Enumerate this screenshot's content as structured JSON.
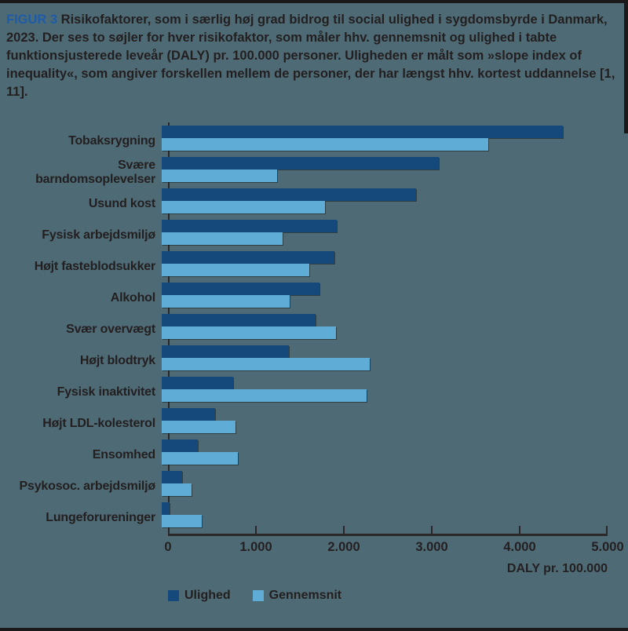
{
  "figure": {
    "label": "FIGUR 3",
    "caption": " Risikofaktorer, som i særlig høj grad bidrog til social ulighed i sygdomsbyrde i Danmark, 2023. Der ses to søjler for hver risikofaktor, som måler hhv. gennemsnit og ulighed i tabte funktionsjusterede leveår (DALY) pr. 100.000 personer. Uligheden er målt som »slope index of inequality«, som angiver forskellen mellem de personer, der har længst hhv. kortest uddannelse [1, 11]."
  },
  "colors": {
    "background": "#4E6A74",
    "ulighed": "#15497B",
    "gennemsnit": "#5FACD6",
    "figure_label": "#1E5CA9",
    "text": "#231F20",
    "axis": "#2B282A"
  },
  "chart_data": {
    "type": "bar",
    "orientation": "horizontal",
    "title": "FIGUR 3 Risikofaktorer, som i særlig høj grad bidrog til social ulighed i sygdomsbyrde i Danmark, 2023",
    "categories": [
      "Tobaksrygning",
      "Svære barndomsoplevelser",
      "Usund kost",
      "Fysisk arbejdsmiljø",
      "Højt fasteblodsukker",
      "Alkohol",
      "Svær overvægt",
      "Højt blodtryk",
      "Fysisk inaktivitet",
      "Højt LDL-kolesterol",
      "Ensomhed",
      "Psykosoc. arbejdsmiljø",
      "Lungeforureninger"
    ],
    "series": [
      {
        "name": "Ulighed",
        "color": "#15497B",
        "values": [
          4300,
          2970,
          2730,
          1880,
          1850,
          1690,
          1650,
          1360,
          770,
          570,
          390,
          220,
          80
        ]
      },
      {
        "name": "Gennemsnit",
        "color": "#5FACD6",
        "values": [
          3500,
          1240,
          1750,
          1300,
          1580,
          1370,
          1870,
          2230,
          2200,
          790,
          820,
          320,
          430
        ]
      }
    ],
    "xlabel": "DALY pr. 100.000",
    "xlim": [
      0,
      5000
    ],
    "xticks": [
      0,
      1000,
      2000,
      3000,
      4000,
      5000
    ],
    "xtick_labels": [
      "0",
      "1.000",
      "2.000",
      "3.000",
      "4.000",
      "5.000"
    ],
    "legend_position": "bottom-left",
    "grid": false
  }
}
